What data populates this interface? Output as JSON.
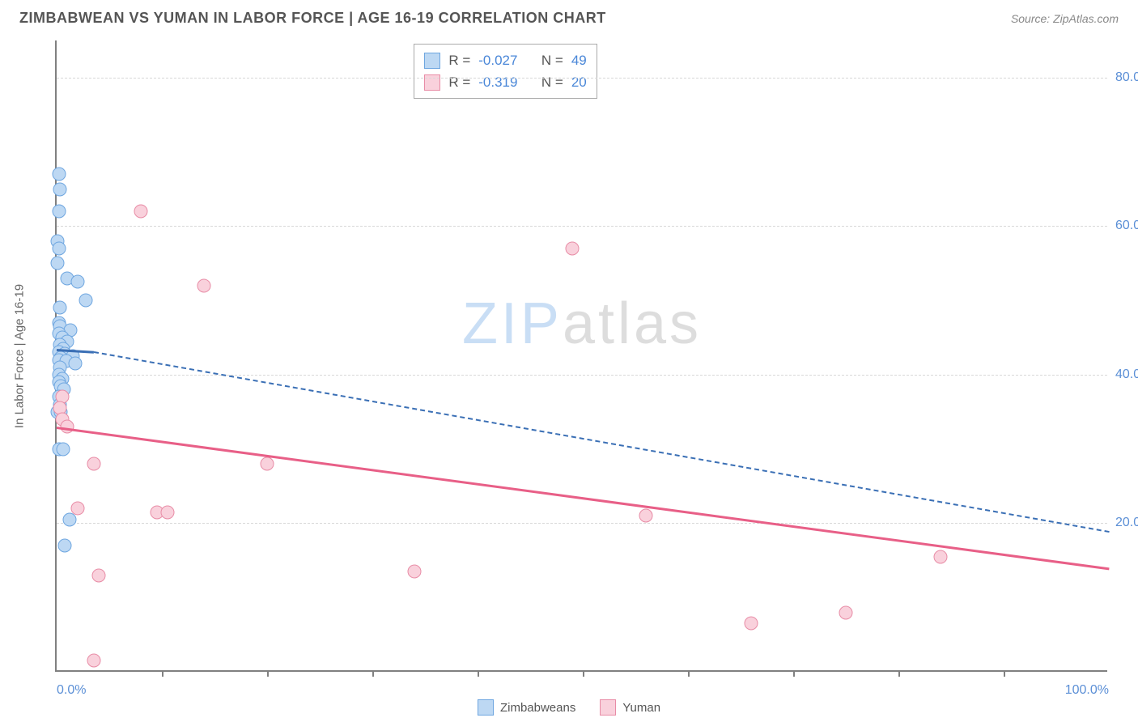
{
  "header": {
    "title": "ZIMBABWEAN VS YUMAN IN LABOR FORCE | AGE 16-19 CORRELATION CHART",
    "source": "Source: ZipAtlas.com"
  },
  "watermark": {
    "part1": "ZIP",
    "part2": "atlas"
  },
  "chart": {
    "type": "scatter",
    "ylabel": "In Labor Force | Age 16-19",
    "xlim": [
      0,
      100
    ],
    "ylim": [
      0,
      85
    ],
    "x_minor_ticks": [
      10,
      20,
      30,
      40,
      50,
      60,
      70,
      80,
      90
    ],
    "x_labels": [
      {
        "v": 0,
        "text": "0.0%"
      },
      {
        "v": 100,
        "text": "100.0%"
      }
    ],
    "y_gridlines": [
      20,
      40,
      60,
      80
    ],
    "y_labels": [
      {
        "v": 20,
        "text": "20.0%"
      },
      {
        "v": 40,
        "text": "40.0%"
      },
      {
        "v": 60,
        "text": "60.0%"
      },
      {
        "v": 80,
        "text": "80.0%"
      }
    ],
    "series": [
      {
        "name": "Zimbabweans",
        "colors": {
          "fill": "#bdd8f3",
          "stroke": "#6ea6e0",
          "line": "#3a6fb5"
        },
        "stats": {
          "R": "-0.027",
          "N": "49"
        },
        "trend": {
          "x1": 0,
          "y1": 43.5,
          "x2": 3.5,
          "y2": 43.2,
          "solid": true
        },
        "trend_ext": {
          "x1": 3.5,
          "y1": 43.2,
          "x2": 100,
          "y2": 19.0,
          "solid": false
        },
        "points": [
          [
            0.2,
            67
          ],
          [
            0.3,
            65
          ],
          [
            0.2,
            62
          ],
          [
            0.1,
            58
          ],
          [
            0.2,
            57
          ],
          [
            0.1,
            55
          ],
          [
            1.0,
            53
          ],
          [
            2.0,
            52.5
          ],
          [
            2.8,
            50
          ],
          [
            0.3,
            49
          ],
          [
            0.2,
            47
          ],
          [
            0.3,
            46.5
          ],
          [
            1.3,
            46
          ],
          [
            0.2,
            45.5
          ],
          [
            0.5,
            45
          ],
          [
            1.0,
            44.5
          ],
          [
            0.3,
            44
          ],
          [
            0.6,
            43.5
          ],
          [
            0.2,
            43
          ],
          [
            0.8,
            42.8
          ],
          [
            1.5,
            42.5
          ],
          [
            0.4,
            42.3
          ],
          [
            0.2,
            42
          ],
          [
            0.9,
            41.8
          ],
          [
            1.8,
            41.5
          ],
          [
            0.3,
            41
          ],
          [
            0.2,
            40
          ],
          [
            0.5,
            39.5
          ],
          [
            0.2,
            39
          ],
          [
            0.4,
            38.5
          ],
          [
            0.7,
            38
          ],
          [
            0.2,
            37
          ],
          [
            0.3,
            36
          ],
          [
            0.1,
            35
          ],
          [
            0.4,
            35
          ],
          [
            0.2,
            30
          ],
          [
            0.6,
            30
          ],
          [
            1.2,
            20.5
          ],
          [
            0.8,
            17
          ]
        ]
      },
      {
        "name": "Yuman",
        "colors": {
          "fill": "#f9d1dc",
          "stroke": "#e88ca6",
          "line": "#e85f87"
        },
        "stats": {
          "R": "-0.319",
          "N": "20"
        },
        "trend": {
          "x1": 0,
          "y1": 33.0,
          "x2": 100,
          "y2": 14.0,
          "solid": true
        },
        "points": [
          [
            8,
            62
          ],
          [
            14,
            52
          ],
          [
            49,
            57
          ],
          [
            0.5,
            37
          ],
          [
            0.3,
            35.5
          ],
          [
            0.5,
            34
          ],
          [
            1.0,
            33
          ],
          [
            3.5,
            28
          ],
          [
            20,
            28
          ],
          [
            2,
            22
          ],
          [
            9.5,
            21.5
          ],
          [
            10.5,
            21.5
          ],
          [
            56,
            21
          ],
          [
            84,
            15.5
          ],
          [
            4,
            13
          ],
          [
            34,
            13.5
          ],
          [
            75,
            8
          ],
          [
            66,
            6.5
          ],
          [
            3.5,
            1.5
          ]
        ]
      }
    ],
    "bottom_legend": [
      "Zimbabweans",
      "Yuman"
    ]
  },
  "colors": {
    "axis": "#808080",
    "grid": "#d8d8d8",
    "tick_text": "#5b8fd6",
    "title_text": "#555555",
    "source_text": "#888888"
  }
}
